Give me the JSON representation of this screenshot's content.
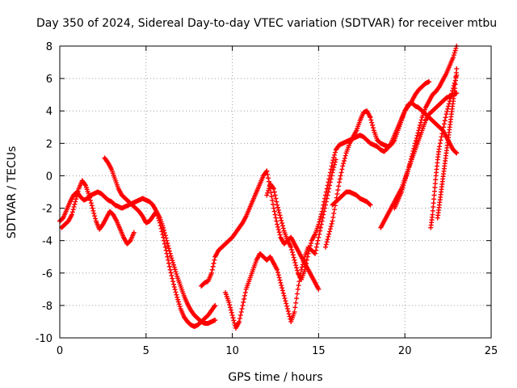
{
  "chart_data": {
    "type": "scatter",
    "title": "Day 350 of 2024, Sidereal Day-to-day VTEC variation (SDTVAR) for receiver mtbu",
    "xlabel": "GPS time / hours",
    "ylabel": "SDTVAR / TECUs",
    "xlim": [
      0,
      25
    ],
    "ylim": [
      -10,
      8
    ],
    "xticks": [
      "0",
      "5",
      "10",
      "15",
      "20",
      "25"
    ],
    "yticks": [
      "-10",
      "-8",
      "-6",
      "-4",
      "-2",
      "0",
      "2",
      "4",
      "6",
      "8"
    ],
    "grid": true,
    "marker": "plus",
    "color": "#ff0000",
    "series": [
      {
        "x": [
          0.0,
          0.2,
          0.4,
          0.6,
          0.8,
          1.0,
          1.2,
          1.4,
          1.6,
          1.8,
          2.0,
          2.2,
          2.4,
          2.6,
          2.8,
          3.0,
          3.2,
          3.4,
          3.6,
          3.8,
          4.0,
          4.2,
          4.4,
          4.6,
          4.8,
          5.0,
          5.2,
          5.4,
          5.6,
          5.8,
          6.0,
          6.2,
          6.4,
          6.6,
          6.8,
          7.0,
          7.2,
          7.4,
          7.6,
          7.8,
          8.0,
          8.2,
          8.4,
          8.6,
          8.8,
          9.0
        ],
        "y": [
          -2.8,
          -2.6,
          -2.1,
          -1.6,
          -1.2,
          -1.0,
          -1.3,
          -1.5,
          -1.4,
          -1.2,
          -1.1,
          -1.0,
          -1.1,
          -1.3,
          -1.5,
          -1.6,
          -1.8,
          -1.9,
          -2.0,
          -1.9,
          -1.8,
          -1.7,
          -1.6,
          -1.5,
          -1.4,
          -1.5,
          -1.6,
          -1.8,
          -2.2,
          -2.9,
          -3.8,
          -4.8,
          -5.8,
          -6.7,
          -7.5,
          -8.2,
          -8.7,
          -9.0,
          -9.2,
          -9.3,
          -9.2,
          -9.0,
          -8.8,
          -8.6,
          -8.3,
          -8.0
        ]
      },
      {
        "x": [
          0.1,
          0.3,
          0.5,
          0.7,
          0.9,
          1.1,
          1.3,
          1.5,
          1.7,
          1.9,
          2.1,
          2.3,
          2.5,
          2.7,
          2.9,
          3.1,
          3.3,
          3.5,
          3.7,
          3.9,
          4.1,
          4.3
        ],
        "y": [
          -3.2,
          -3.0,
          -2.8,
          -2.4,
          -1.6,
          -0.8,
          -0.3,
          -0.6,
          -1.2,
          -2.0,
          -2.8,
          -3.3,
          -3.0,
          -2.6,
          -2.2,
          -2.4,
          -2.8,
          -3.3,
          -3.8,
          -4.2,
          -4.0,
          -3.5
        ]
      },
      {
        "x": [
          2.6,
          2.8,
          3.0,
          3.2,
          3.4,
          3.6,
          3.8,
          4.0,
          4.2,
          4.4,
          4.6,
          4.8,
          5.0,
          5.2,
          5.4,
          5.6,
          5.8,
          6.0,
          6.2,
          6.4,
          6.6,
          6.8,
          7.0,
          7.2,
          7.4,
          7.6,
          7.8,
          8.0,
          8.2,
          8.4,
          8.6,
          8.8,
          9.0
        ],
        "y": [
          1.1,
          0.8,
          0.4,
          -0.2,
          -0.8,
          -1.2,
          -1.4,
          -1.6,
          -1.8,
          -2.0,
          -2.2,
          -2.5,
          -2.9,
          -2.8,
          -2.5,
          -2.2,
          -2.6,
          -3.2,
          -4.0,
          -4.8,
          -5.5,
          -6.2,
          -6.8,
          -7.4,
          -7.9,
          -8.3,
          -8.6,
          -8.8,
          -9.0,
          -9.1,
          -9.1,
          -9.0,
          -8.9
        ]
      },
      {
        "x": [
          8.2,
          8.4,
          8.6,
          8.8,
          9.0,
          9.2,
          9.4,
          9.6,
          9.8,
          10.0,
          10.2,
          10.4,
          10.6,
          10.8,
          11.0,
          11.2,
          11.4,
          11.6,
          11.8,
          12.0,
          12.2,
          12.4,
          12.6,
          12.8,
          13.0,
          13.2,
          13.4,
          13.6,
          13.8,
          14.0,
          14.2,
          14.4,
          14.6,
          14.8,
          15.0
        ],
        "y": [
          -6.8,
          -6.6,
          -6.5,
          -6.0,
          -5.0,
          -4.6,
          -4.4,
          -4.2,
          -4.0,
          -3.8,
          -3.5,
          -3.2,
          -2.9,
          -2.5,
          -2.0,
          -1.5,
          -1.0,
          -0.5,
          0.0,
          0.3,
          -0.8,
          -2.0,
          -3.0,
          -3.8,
          -4.2,
          -4.0,
          -3.8,
          -4.2,
          -4.6,
          -5.0,
          -5.4,
          -5.8,
          -6.2,
          -6.6,
          -7.0
        ]
      },
      {
        "x": [
          9.6,
          9.8,
          10.0,
          10.2,
          10.4,
          10.6,
          10.8,
          11.0,
          11.2,
          11.4,
          11.6,
          11.8,
          12.0,
          12.2,
          12.4,
          12.6,
          12.8,
          13.0,
          13.2,
          13.4,
          13.6,
          13.8,
          14.0,
          14.2,
          14.4,
          14.6,
          14.8,
          15.0,
          15.2,
          15.4,
          15.6,
          15.8,
          16.0
        ],
        "y": [
          -7.2,
          -7.8,
          -8.6,
          -9.4,
          -9.0,
          -8.0,
          -7.0,
          -6.4,
          -5.8,
          -5.2,
          -4.8,
          -5.0,
          -5.2,
          -5.0,
          -5.4,
          -5.8,
          -6.6,
          -7.4,
          -8.2,
          -9.0,
          -8.4,
          -7.0,
          -5.8,
          -5.0,
          -4.4,
          -4.6,
          -4.8,
          -3.8,
          -2.8,
          -1.8,
          -0.8,
          0.2,
          1.0
        ]
      },
      {
        "x": [
          12.0,
          12.2,
          12.4,
          12.6,
          12.8,
          13.0,
          13.2,
          13.4,
          13.6,
          13.8,
          14.0,
          14.2,
          14.4,
          14.6,
          14.8,
          15.0,
          15.2,
          15.4,
          15.6,
          15.8,
          16.0,
          16.2,
          16.4,
          16.6,
          16.8,
          17.0,
          17.2,
          17.4,
          17.6,
          17.8,
          18.0,
          18.2,
          18.4,
          18.6,
          18.8,
          19.0,
          19.2,
          19.4,
          19.6,
          19.8,
          20.0,
          20.2,
          20.4,
          20.6,
          20.8,
          21.0,
          21.2,
          21.4
        ],
        "y": [
          -1.2,
          -0.5,
          -0.8,
          -1.8,
          -2.6,
          -3.4,
          -4.0,
          -4.4,
          -5.2,
          -6.0,
          -6.4,
          -5.8,
          -4.8,
          -4.0,
          -3.6,
          -3.0,
          -2.2,
          -1.2,
          -0.2,
          0.8,
          1.6,
          1.9,
          2.0,
          2.1,
          2.2,
          2.3,
          2.4,
          2.5,
          2.4,
          2.2,
          2.0,
          1.9,
          1.8,
          1.6,
          1.5,
          1.7,
          2.0,
          2.5,
          3.0,
          3.5,
          4.0,
          4.3,
          4.6,
          5.0,
          5.3,
          5.5,
          5.7,
          5.8
        ]
      },
      {
        "x": [
          15.4,
          15.6,
          15.8,
          16.0,
          16.2,
          16.4,
          16.6,
          16.8,
          17.0,
          17.2,
          17.4,
          17.6,
          17.8,
          18.0,
          18.2,
          18.4,
          18.6,
          18.8,
          19.0,
          19.2,
          19.4,
          19.6,
          19.8,
          20.0,
          20.2,
          20.4,
          20.6,
          20.8,
          21.0,
          21.2,
          21.4,
          21.6,
          21.8,
          22.0,
          22.2,
          22.4,
          22.6,
          22.8,
          23.0
        ],
        "y": [
          -4.4,
          -3.6,
          -2.8,
          -1.6,
          -0.4,
          0.6,
          1.4,
          2.0,
          2.4,
          2.8,
          3.4,
          3.9,
          4.0,
          3.6,
          2.8,
          2.2,
          2.0,
          1.9,
          1.8,
          1.9,
          2.2,
          2.8,
          3.4,
          4.0,
          4.4,
          4.5,
          4.3,
          4.2,
          4.0,
          3.8,
          3.6,
          3.4,
          3.2,
          3.0,
          2.8,
          2.4,
          2.0,
          1.6,
          1.4
        ]
      },
      {
        "x": [
          15.8,
          16.0,
          16.2,
          16.4,
          16.6,
          16.8,
          17.0,
          17.2,
          17.4,
          17.6,
          17.8,
          18.0
        ],
        "y": [
          -1.8,
          -1.6,
          -1.4,
          -1.2,
          -1.0,
          -1.0,
          -1.1,
          -1.2,
          -1.4,
          -1.5,
          -1.6,
          -1.8
        ]
      },
      {
        "x": [
          18.6,
          18.8,
          19.0,
          19.2,
          19.4,
          19.6,
          19.8,
          20.0,
          20.2,
          20.4,
          20.6,
          20.8,
          21.0,
          21.2,
          21.4,
          21.6,
          21.8,
          22.0,
          22.2,
          22.4,
          22.6,
          22.8,
          23.0
        ],
        "y": [
          -3.2,
          -2.8,
          -2.4,
          -2.0,
          -1.6,
          -1.2,
          -0.8,
          -0.2,
          0.4,
          1.0,
          1.6,
          2.2,
          2.8,
          3.4,
          3.8,
          4.0,
          4.2,
          4.4,
          4.6,
          4.8,
          4.9,
          5.0,
          5.1
        ]
      },
      {
        "x": [
          19.4,
          19.6,
          19.8,
          20.0,
          20.2,
          20.4,
          20.6,
          20.8,
          21.0,
          21.2,
          21.4,
          21.6,
          21.8,
          22.0,
          22.2,
          22.4,
          22.6,
          22.8,
          23.0
        ],
        "y": [
          -2.0,
          -1.5,
          -1.0,
          -0.3,
          0.4,
          1.2,
          2.0,
          2.8,
          3.6,
          4.2,
          4.6,
          5.0,
          5.2,
          5.5,
          5.9,
          6.3,
          6.8,
          7.3,
          8.0
        ]
      },
      {
        "x": [
          21.5,
          21.6,
          21.7,
          21.8,
          21.9,
          22.0,
          22.2,
          22.4,
          22.6,
          22.8,
          23.0
        ],
        "y": [
          -3.2,
          -2.4,
          -1.2,
          0.0,
          1.0,
          1.8,
          2.8,
          3.8,
          4.6,
          5.4,
          6.2
        ]
      },
      {
        "x": [
          21.9,
          22.0,
          22.1,
          22.2,
          22.3,
          22.4,
          22.5,
          22.6,
          22.7,
          22.8,
          22.9,
          23.0
        ],
        "y": [
          -2.6,
          -1.8,
          -1.0,
          -0.2,
          0.6,
          1.4,
          2.2,
          3.0,
          3.8,
          4.6,
          5.4,
          6.6
        ]
      }
    ]
  }
}
